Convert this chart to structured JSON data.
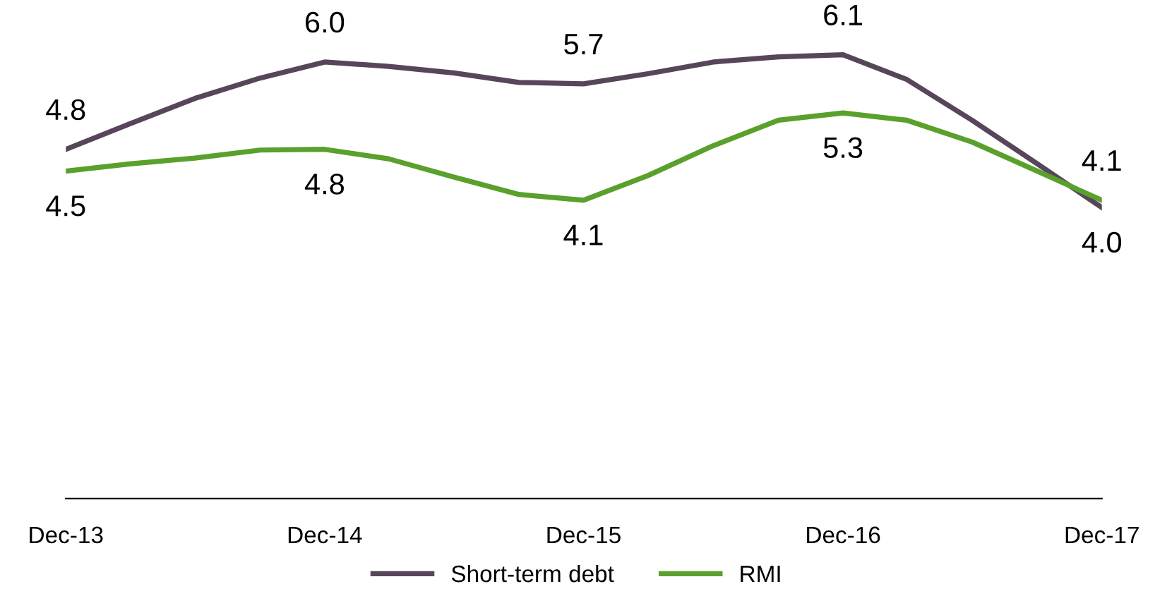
{
  "chart_data": {
    "type": "line",
    "x": [
      "2013-12",
      "2014-03",
      "2014-06",
      "2014-09",
      "2014-12",
      "2015-03",
      "2015-06",
      "2015-09",
      "2015-12",
      "2016-03",
      "2016-06",
      "2016-09",
      "2016-12",
      "2017-03",
      "2017-06",
      "2017-09",
      "2017-12"
    ],
    "series": [
      {
        "name": "Short-term debt",
        "color": "#574659",
        "values": [
          4.8,
          5.15,
          5.5,
          5.78,
          6.0,
          5.94,
          5.85,
          5.72,
          5.7,
          5.84,
          6.0,
          6.07,
          6.1,
          5.76,
          5.2,
          4.6,
          4.0
        ],
        "value_labels": [
          "4.8",
          null,
          null,
          null,
          "6.0",
          null,
          null,
          null,
          "5.7",
          null,
          null,
          null,
          "6.1",
          null,
          null,
          null,
          "4.0"
        ]
      },
      {
        "name": "RMI",
        "color": "#5aa02c",
        "values": [
          4.5,
          4.6,
          4.68,
          4.79,
          4.8,
          4.67,
          4.42,
          4.18,
          4.1,
          4.44,
          4.85,
          5.2,
          5.3,
          5.2,
          4.9,
          4.5,
          4.1
        ],
        "value_labels": [
          "4.5",
          null,
          null,
          null,
          "4.8",
          null,
          null,
          null,
          "4.1",
          null,
          null,
          null,
          "5.3",
          null,
          null,
          null,
          "4.1"
        ]
      }
    ],
    "xlim": [
      "2013-12",
      "2017-12"
    ],
    "xticks": [
      {
        "value": "2013-12",
        "label": "Dec-13"
      },
      {
        "value": "2014-12",
        "label": "Dec-14"
      },
      {
        "value": "2015-12",
        "label": "Dec-15"
      },
      {
        "value": "2016-12",
        "label": "Dec-16"
      },
      {
        "value": "2017-12",
        "label": "Dec-17"
      }
    ],
    "tick_labels": "x",
    "grid": false,
    "legend": "bottom",
    "marker": "none",
    "line_style": "solid"
  }
}
